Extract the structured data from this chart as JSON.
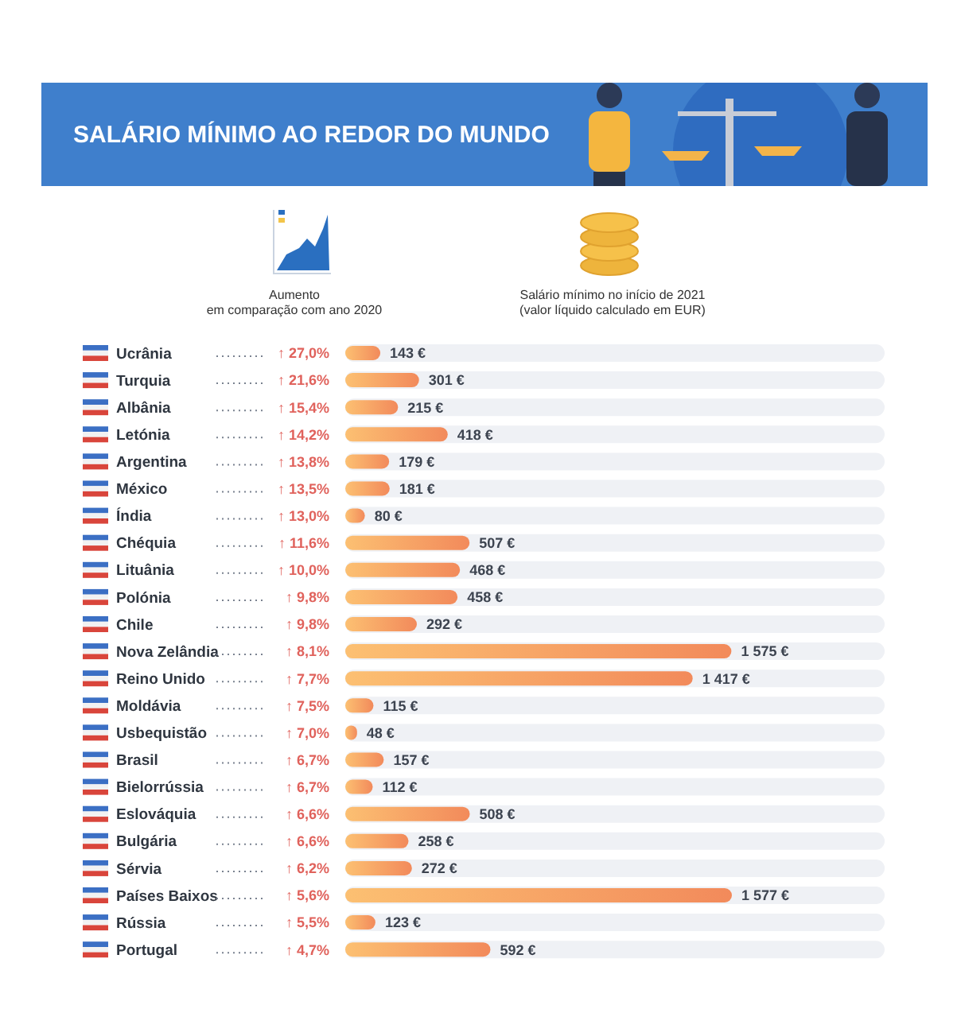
{
  "chart_data": {
    "type": "bar",
    "orientation": "horizontal",
    "title": "SALÁRIO MÍNIMO AO REDOR DO MUNDO",
    "xlabel": "Salário mínimo no início de 2021\n(valor líquido calculado em EUR)",
    "categories": [
      "Ucrânia",
      "Turquia",
      "Albânia",
      "Letónia",
      "Argentina",
      "México",
      "Índia",
      "Chéquia",
      "Lituânia",
      "Polónia",
      "Chile",
      "Nova Zelândia",
      "Reino Unido",
      "Moldávia",
      "Usbequistão",
      "Brasil",
      "Bielorrússia",
      "Eslováquia",
      "Bulgária",
      "Sérvia",
      "Países Baixos",
      "Rússia",
      "Portugal"
    ],
    "series": [
      {
        "color": "#f28a5b",
        "values": [
          143,
          301,
          215,
          418,
          179,
          181,
          80,
          507,
          468,
          458,
          292,
          1575,
          1417,
          115,
          48,
          157,
          112,
          508,
          258,
          272,
          1577,
          123,
          592
        ],
        "value_labels": [
          "143 €",
          "301 €",
          "215 €",
          "418 €",
          "179 €",
          "181 €",
          "80 €",
          "507 €",
          "468 €",
          "458 €",
          "292 €",
          "1 575 €",
          "1 417 €",
          "115 €",
          "48 €",
          "157 €",
          "112 €",
          "508 €",
          "258 €",
          "272 €",
          "1 577 €",
          "123 €",
          "592 €"
        ]
      }
    ],
    "annotations": [
      "Aumento\nem comparação com ano 2020",
      "↑ 27,0%",
      "↑ 21,6%",
      "↑ 15,4%",
      "↑ 14,2%",
      "↑ 13,8%",
      "↑ 13,5%",
      "↑ 13,0%",
      "↑ 11,6%",
      "↑ 10,0%",
      "↑ 9,8%",
      "↑ 9,8%",
      "↑ 8,1%",
      "↑ 7,7%",
      "↑ 7,5%",
      "↑ 7,0%",
      "↑ 6,7%",
      "↑ 6,7%",
      "↑ 6,6%",
      "↑ 6,6%",
      "↑ 6,2%",
      "↑ 5,6%",
      "↑ 5,5%",
      "↑ 4,7%"
    ]
  }
}
